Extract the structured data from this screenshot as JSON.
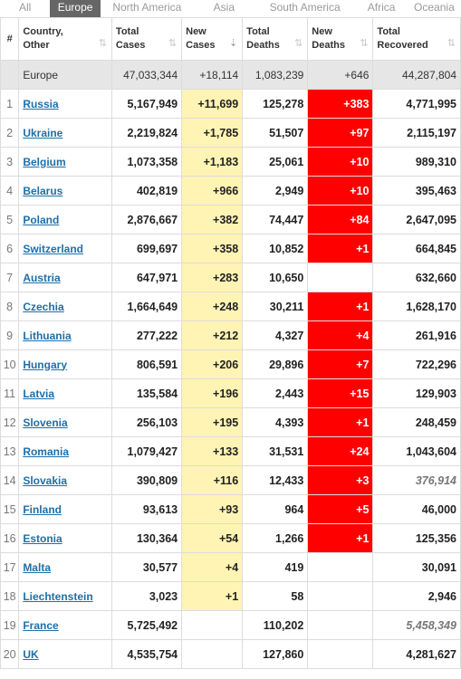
{
  "tabs": [
    {
      "label": "All",
      "active": false
    },
    {
      "label": "Europe",
      "active": true
    },
    {
      "label": "North America",
      "active": false
    },
    {
      "label": "Asia",
      "active": false
    },
    {
      "label": "South America",
      "active": false
    },
    {
      "label": "Africa",
      "active": false
    },
    {
      "label": "Oceania",
      "active": false
    }
  ],
  "headers": {
    "num": "#",
    "country": [
      "Country,",
      "Other"
    ],
    "total_cases": [
      "Total",
      "Cases"
    ],
    "new_cases": [
      "New",
      "Cases"
    ],
    "total_deaths": [
      "Total",
      "Deaths"
    ],
    "new_deaths": [
      "New",
      "Deaths"
    ],
    "total_recovered": [
      "Total",
      "Recovered"
    ]
  },
  "colors": {
    "new_cases_bg": "#fff4b4",
    "new_deaths_bg": "#ff0000",
    "link": "#1f6fa7",
    "active_tab": "#666666"
  },
  "total": {
    "name": "Europe",
    "total_cases": "47,033,344",
    "new_cases": "+18,114",
    "total_deaths": "1,083,239",
    "new_deaths": "+646",
    "total_recovered": "44,287,804"
  },
  "rows": [
    {
      "num": "1",
      "name": "Russia",
      "total_cases": "5,167,949",
      "new_cases": "+11,699",
      "total_deaths": "125,278",
      "new_deaths": "+383",
      "total_recovered": "4,771,995",
      "recovered_italic": false
    },
    {
      "num": "2",
      "name": "Ukraine",
      "total_cases": "2,219,824",
      "new_cases": "+1,785",
      "total_deaths": "51,507",
      "new_deaths": "+97",
      "total_recovered": "2,115,197",
      "recovered_italic": false
    },
    {
      "num": "3",
      "name": "Belgium",
      "total_cases": "1,073,358",
      "new_cases": "+1,183",
      "total_deaths": "25,061",
      "new_deaths": "+10",
      "total_recovered": "989,310",
      "recovered_italic": false
    },
    {
      "num": "4",
      "name": "Belarus",
      "total_cases": "402,819",
      "new_cases": "+966",
      "total_deaths": "2,949",
      "new_deaths": "+10",
      "total_recovered": "395,463",
      "recovered_italic": false
    },
    {
      "num": "5",
      "name": "Poland",
      "total_cases": "2,876,667",
      "new_cases": "+382",
      "total_deaths": "74,447",
      "new_deaths": "+84",
      "total_recovered": "2,647,095",
      "recovered_italic": false
    },
    {
      "num": "6",
      "name": "Switzerland",
      "total_cases": "699,697",
      "new_cases": "+358",
      "total_deaths": "10,852",
      "new_deaths": "+1",
      "total_recovered": "664,845",
      "recovered_italic": false
    },
    {
      "num": "7",
      "name": "Austria",
      "total_cases": "647,971",
      "new_cases": "+283",
      "total_deaths": "10,650",
      "new_deaths": "",
      "total_recovered": "632,660",
      "recovered_italic": false
    },
    {
      "num": "8",
      "name": "Czechia",
      "total_cases": "1,664,649",
      "new_cases": "+248",
      "total_deaths": "30,211",
      "new_deaths": "+1",
      "total_recovered": "1,628,170",
      "recovered_italic": false
    },
    {
      "num": "9",
      "name": "Lithuania",
      "total_cases": "277,222",
      "new_cases": "+212",
      "total_deaths": "4,327",
      "new_deaths": "+4",
      "total_recovered": "261,916",
      "recovered_italic": false
    },
    {
      "num": "10",
      "name": "Hungary",
      "total_cases": "806,591",
      "new_cases": "+206",
      "total_deaths": "29,896",
      "new_deaths": "+7",
      "total_recovered": "722,296",
      "recovered_italic": false
    },
    {
      "num": "11",
      "name": "Latvia",
      "total_cases": "135,584",
      "new_cases": "+196",
      "total_deaths": "2,443",
      "new_deaths": "+15",
      "total_recovered": "129,903",
      "recovered_italic": false
    },
    {
      "num": "12",
      "name": "Slovenia",
      "total_cases": "256,103",
      "new_cases": "+195",
      "total_deaths": "4,393",
      "new_deaths": "+1",
      "total_recovered": "248,459",
      "recovered_italic": false
    },
    {
      "num": "13",
      "name": "Romania",
      "total_cases": "1,079,427",
      "new_cases": "+133",
      "total_deaths": "31,531",
      "new_deaths": "+24",
      "total_recovered": "1,043,604",
      "recovered_italic": false
    },
    {
      "num": "14",
      "name": "Slovakia",
      "total_cases": "390,809",
      "new_cases": "+116",
      "total_deaths": "12,433",
      "new_deaths": "+3",
      "total_recovered": "376,914",
      "recovered_italic": true
    },
    {
      "num": "15",
      "name": "Finland",
      "total_cases": "93,613",
      "new_cases": "+93",
      "total_deaths": "964",
      "new_deaths": "+5",
      "total_recovered": "46,000",
      "recovered_italic": false
    },
    {
      "num": "16",
      "name": "Estonia",
      "total_cases": "130,364",
      "new_cases": "+54",
      "total_deaths": "1,266",
      "new_deaths": "+1",
      "total_recovered": "125,356",
      "recovered_italic": false
    },
    {
      "num": "17",
      "name": "Malta",
      "total_cases": "30,577",
      "new_cases": "+4",
      "total_deaths": "419",
      "new_deaths": "",
      "total_recovered": "30,091",
      "recovered_italic": false
    },
    {
      "num": "18",
      "name": "Liechtenstein",
      "total_cases": "3,023",
      "new_cases": "+1",
      "total_deaths": "58",
      "new_deaths": "",
      "total_recovered": "2,946",
      "recovered_italic": false
    },
    {
      "num": "19",
      "name": "France",
      "total_cases": "5,725,492",
      "new_cases": "",
      "total_deaths": "110,202",
      "new_deaths": "",
      "total_recovered": "5,458,349",
      "recovered_italic": true
    },
    {
      "num": "20",
      "name": "UK",
      "total_cases": "4,535,754",
      "new_cases": "",
      "total_deaths": "127,860",
      "new_deaths": "",
      "total_recovered": "4,281,627",
      "recovered_italic": false
    }
  ]
}
